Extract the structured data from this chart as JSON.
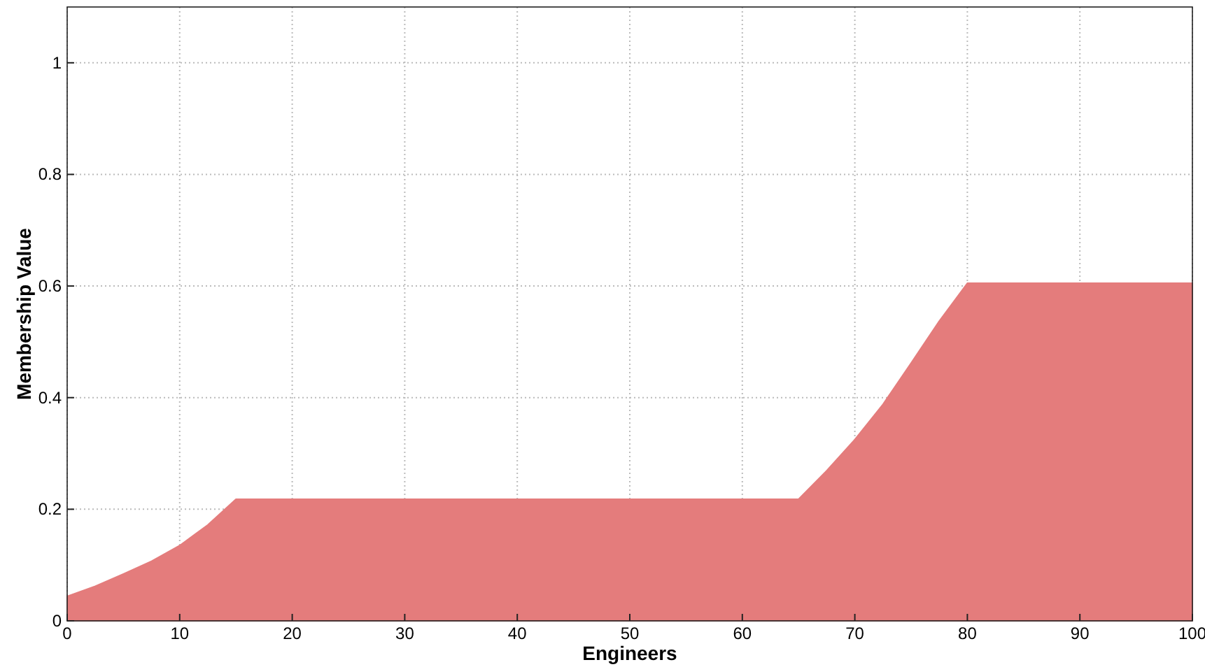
{
  "chart_data": {
    "type": "area",
    "xlabel": "Engineers",
    "ylabel": "Membership Value",
    "xlim": [
      0,
      100
    ],
    "ylim": [
      0,
      1.1
    ],
    "xticks": [
      0,
      10,
      20,
      30,
      40,
      50,
      60,
      70,
      80,
      90,
      100
    ],
    "yticks": [
      0,
      0.2,
      0.4,
      0.6,
      0.8,
      1
    ],
    "grid": true,
    "series": [
      {
        "color": "#e47c7c",
        "x": [
          0,
          2.5,
          5,
          7.5,
          10,
          12.5,
          15,
          65,
          67.5,
          70,
          72.5,
          75,
          77.5,
          80,
          100
        ],
        "values": [
          0.044,
          0.062,
          0.084,
          0.107,
          0.135,
          0.172,
          0.218,
          0.218,
          0.269,
          0.325,
          0.388,
          0.462,
          0.537,
          0.605,
          0.605
        ]
      }
    ]
  }
}
